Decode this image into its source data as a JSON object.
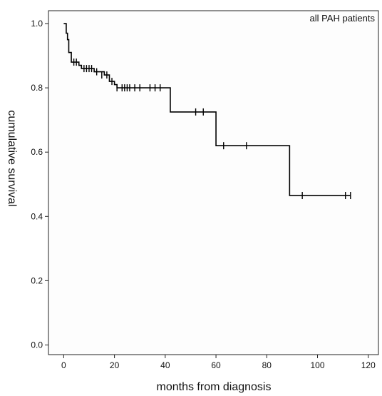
{
  "chart_data": {
    "type": "line",
    "step": true,
    "xlabel": "months from diagnosis",
    "ylabel": "cumulative survival",
    "legend_label": "all PAH patients",
    "legend_position": "top-right",
    "xlim": [
      -6,
      124
    ],
    "ylim": [
      -0.03,
      1.04
    ],
    "x_ticks": [
      0,
      20,
      40,
      60,
      80,
      100,
      120
    ],
    "y_ticks": [
      0.0,
      0.2,
      0.4,
      0.6,
      0.8,
      1.0
    ],
    "y_tick_labels": [
      "0.0",
      "0.2",
      "0.4",
      "0.6",
      "0.8",
      "1.0"
    ],
    "grid": false,
    "line_color": "#000000",
    "plot_background": "#fdfdfd",
    "series": [
      {
        "x": [
          0,
          1,
          1.5,
          2,
          3,
          6,
          7,
          12,
          16,
          18,
          20,
          21,
          42,
          60,
          89,
          113
        ],
        "y": [
          1.0,
          0.97,
          0.95,
          0.91,
          0.88,
          0.87,
          0.86,
          0.85,
          0.84,
          0.82,
          0.81,
          0.8,
          0.725,
          0.62,
          0.465,
          0.465
        ]
      }
    ],
    "censored": {
      "x": [
        4,
        5,
        8,
        9,
        10,
        11,
        13,
        15,
        17,
        19,
        21,
        23,
        24,
        25,
        26,
        28,
        30,
        34,
        36,
        38,
        52,
        55,
        63,
        72,
        94,
        111,
        113
      ],
      "y": [
        0.88,
        0.88,
        0.86,
        0.86,
        0.86,
        0.86,
        0.85,
        0.84,
        0.84,
        0.82,
        0.8,
        0.8,
        0.8,
        0.8,
        0.8,
        0.8,
        0.8,
        0.8,
        0.8,
        0.8,
        0.725,
        0.725,
        0.62,
        0.62,
        0.465,
        0.465,
        0.465
      ]
    }
  }
}
